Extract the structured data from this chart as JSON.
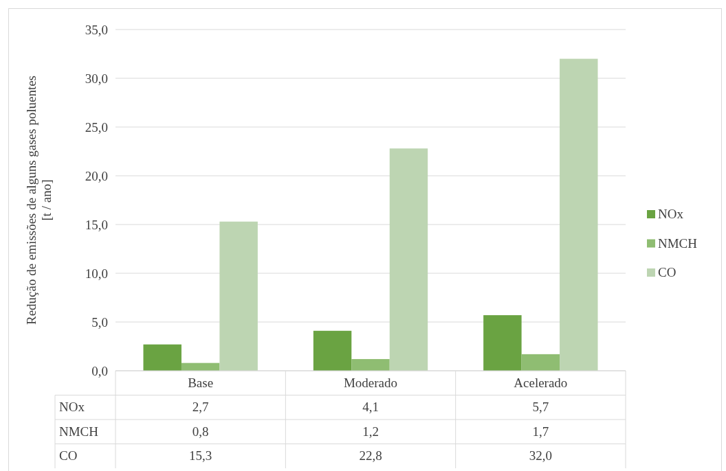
{
  "chart_data": {
    "type": "bar",
    "ylabel": "Redução de emissões de alguns gases poluentes\n[t / ano]",
    "categories": [
      "Base",
      "Moderado",
      "Acelerado"
    ],
    "series": [
      {
        "name": "NOx",
        "color": "#6aa342",
        "values": [
          2.7,
          4.1,
          5.7
        ],
        "value_labels": [
          "2,7",
          "4,1",
          "5,7"
        ]
      },
      {
        "name": "NMCH",
        "color": "#8fbd72",
        "values": [
          0.8,
          1.2,
          1.7
        ],
        "value_labels": [
          "0,8",
          "1,2",
          "1,7"
        ]
      },
      {
        "name": "CO",
        "color": "#bdd5b2",
        "values": [
          15.3,
          22.8,
          32.0
        ],
        "value_labels": [
          "15,3",
          "22,8",
          "32,0"
        ]
      }
    ],
    "ylim": [
      0,
      35
    ],
    "yticks": [
      {
        "value": 0,
        "label": "0,0"
      },
      {
        "value": 5,
        "label": "5,0"
      },
      {
        "value": 10,
        "label": "10,0"
      },
      {
        "value": 15,
        "label": "15,0"
      },
      {
        "value": 20,
        "label": "20,0"
      },
      {
        "value": 25,
        "label": "25,0"
      },
      {
        "value": 30,
        "label": "30,0"
      },
      {
        "value": 35,
        "label": "35,0"
      }
    ],
    "grid": "y",
    "legend": "right"
  }
}
